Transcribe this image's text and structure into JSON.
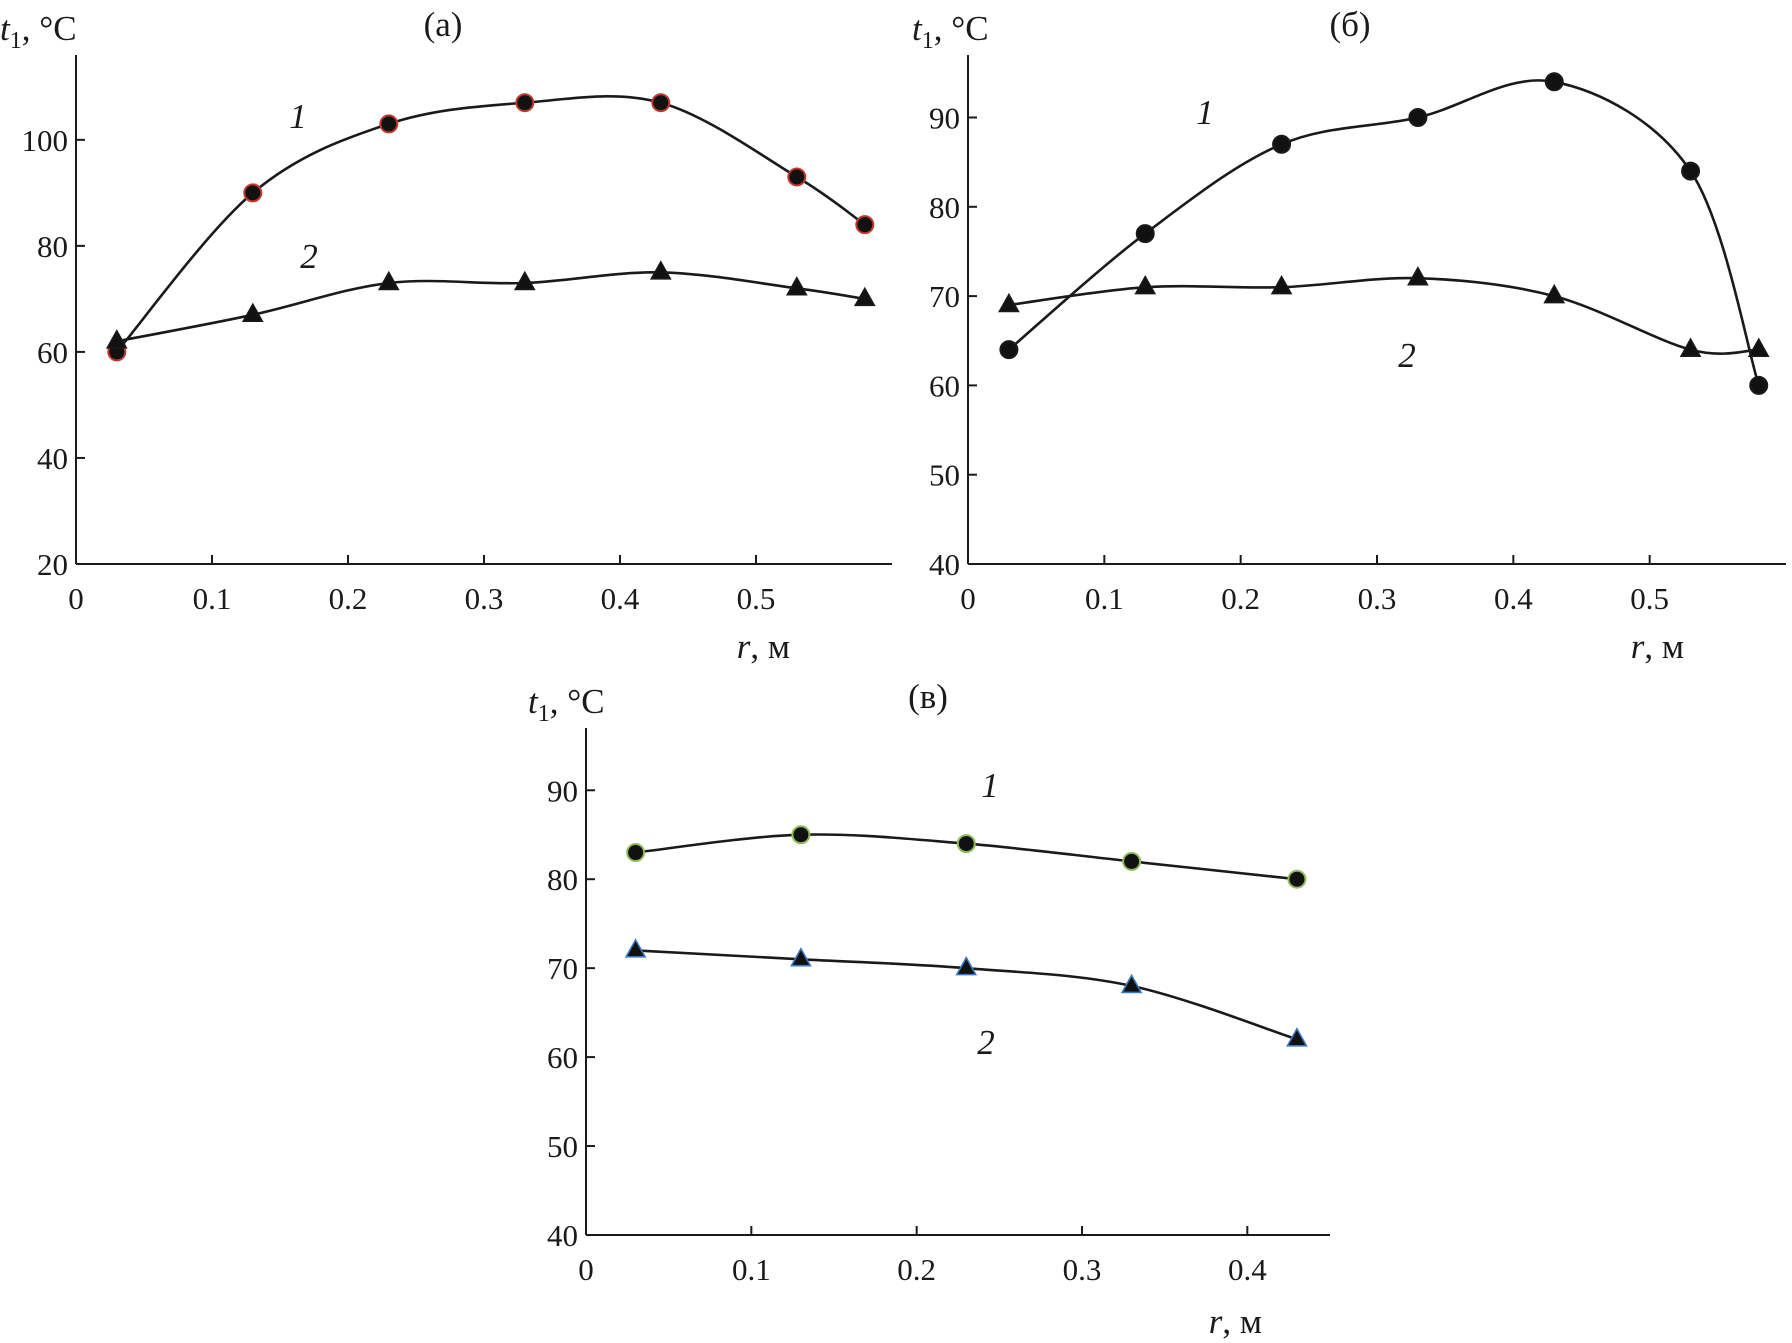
{
  "chart_data": [
    {
      "type": "line",
      "panel_label": "(а)",
      "ylabel": {
        "symbol": "t",
        "sub": "1",
        "unit": ", °C"
      },
      "xlabel": {
        "symbol": "r",
        "unit": ", м"
      },
      "xlim": [
        0,
        0.6
      ],
      "ylim": [
        20,
        116
      ],
      "xticks": [
        0,
        0.1,
        0.2,
        0.3,
        0.4,
        0.5
      ],
      "yticks": [
        20,
        40,
        60,
        80,
        100
      ],
      "grid": false,
      "series": [
        {
          "name": "1",
          "marker": "circle",
          "marker_edge": "#c0392b",
          "x": [
            0.03,
            0.13,
            0.23,
            0.33,
            0.43,
            0.53,
            0.58
          ],
          "y": [
            60,
            90,
            103,
            107,
            107,
            93,
            84
          ]
        },
        {
          "name": "2",
          "marker": "triangle",
          "marker_edge": "#1a1a1a",
          "x": [
            0.03,
            0.13,
            0.23,
            0.33,
            0.43,
            0.53,
            0.58
          ],
          "y": [
            62,
            67,
            73,
            73,
            75,
            72,
            70
          ]
        }
      ]
    },
    {
      "type": "line",
      "panel_label": "(б)",
      "ylabel": {
        "symbol": "t",
        "sub": "1",
        "unit": ", °C"
      },
      "xlabel": {
        "symbol": "r",
        "unit": ", м"
      },
      "xlim": [
        0,
        0.6
      ],
      "ylim": [
        40,
        97
      ],
      "xticks": [
        0,
        0.1,
        0.2,
        0.3,
        0.4,
        0.5
      ],
      "yticks": [
        40,
        50,
        60,
        70,
        80,
        90
      ],
      "grid": false,
      "series": [
        {
          "name": "1",
          "marker": "circle",
          "marker_edge": "#1a1a1a",
          "x": [
            0.03,
            0.13,
            0.23,
            0.33,
            0.43,
            0.53,
            0.58
          ],
          "y": [
            64,
            77,
            87,
            90,
            94,
            84,
            60
          ]
        },
        {
          "name": "2",
          "marker": "triangle",
          "marker_edge": "#1a1a1a",
          "x": [
            0.03,
            0.13,
            0.23,
            0.33,
            0.43,
            0.53,
            0.58
          ],
          "y": [
            69,
            71,
            71,
            72,
            70,
            64,
            64
          ]
        }
      ]
    },
    {
      "type": "line",
      "panel_label": "(в)",
      "ylabel": {
        "symbol": "t",
        "sub": "1",
        "unit": ", °C"
      },
      "xlabel": {
        "symbol": "r",
        "unit": ", м"
      },
      "xlim": [
        0,
        0.45
      ],
      "ylim": [
        40,
        97
      ],
      "xticks": [
        0,
        0.1,
        0.2,
        0.3,
        0.4
      ],
      "yticks": [
        40,
        50,
        60,
        70,
        80,
        90
      ],
      "grid": false,
      "series": [
        {
          "name": "1",
          "marker": "circle",
          "marker_edge": "#8fbc5a",
          "x": [
            0.03,
            0.13,
            0.23,
            0.33,
            0.43
          ],
          "y": [
            83,
            85,
            84,
            82,
            80
          ]
        },
        {
          "name": "2",
          "marker": "triangle",
          "marker_edge": "#3a78c2",
          "x": [
            0.03,
            0.13,
            0.23,
            0.33,
            0.43
          ],
          "y": [
            72,
            71,
            70,
            68,
            62
          ]
        }
      ]
    }
  ]
}
